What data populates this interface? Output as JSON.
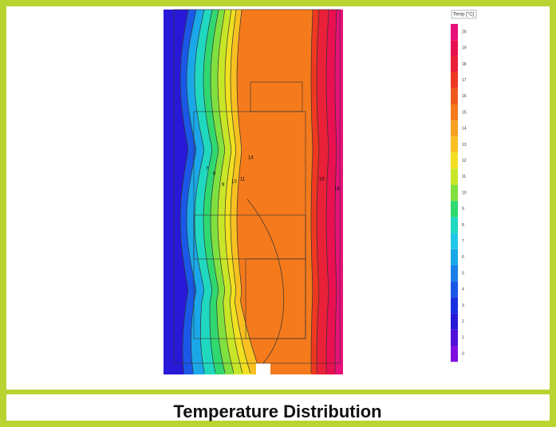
{
  "figure": {
    "legend": {
      "title": "Temp [°C]",
      "items": [
        {
          "label": 20,
          "color": "#e8107a"
        },
        {
          "label": 19,
          "color": "#e81050"
        },
        {
          "label": 18,
          "color": "#ea2038"
        },
        {
          "label": 17,
          "color": "#ee3820"
        },
        {
          "label": 16,
          "color": "#f05a1e"
        },
        {
          "label": 15,
          "color": "#f47a1c"
        },
        {
          "label": 14,
          "color": "#f5a020"
        },
        {
          "label": 13,
          "color": "#f8c020"
        },
        {
          "label": 12,
          "color": "#f0e020"
        },
        {
          "label": 11,
          "color": "#c8e628"
        },
        {
          "label": 10,
          "color": "#80e040"
        },
        {
          "label": 9,
          "color": "#30d870"
        },
        {
          "label": 8,
          "color": "#20d8c0"
        },
        {
          "label": 7,
          "color": "#20c8e8"
        },
        {
          "label": 6,
          "color": "#1aa8e8"
        },
        {
          "label": 5,
          "color": "#1a80e8"
        },
        {
          "label": 4,
          "color": "#1a58e8"
        },
        {
          "label": 3,
          "color": "#1a30e0"
        },
        {
          "label": 2,
          "color": "#2818d8"
        },
        {
          "label": 1,
          "color": "#5010d8"
        },
        {
          "label": 0,
          "color": "#8010e0"
        }
      ]
    },
    "contour_labels": [
      7,
      8,
      9,
      10,
      11,
      14,
      16,
      18
    ],
    "caption": "Temperature Distribution"
  }
}
